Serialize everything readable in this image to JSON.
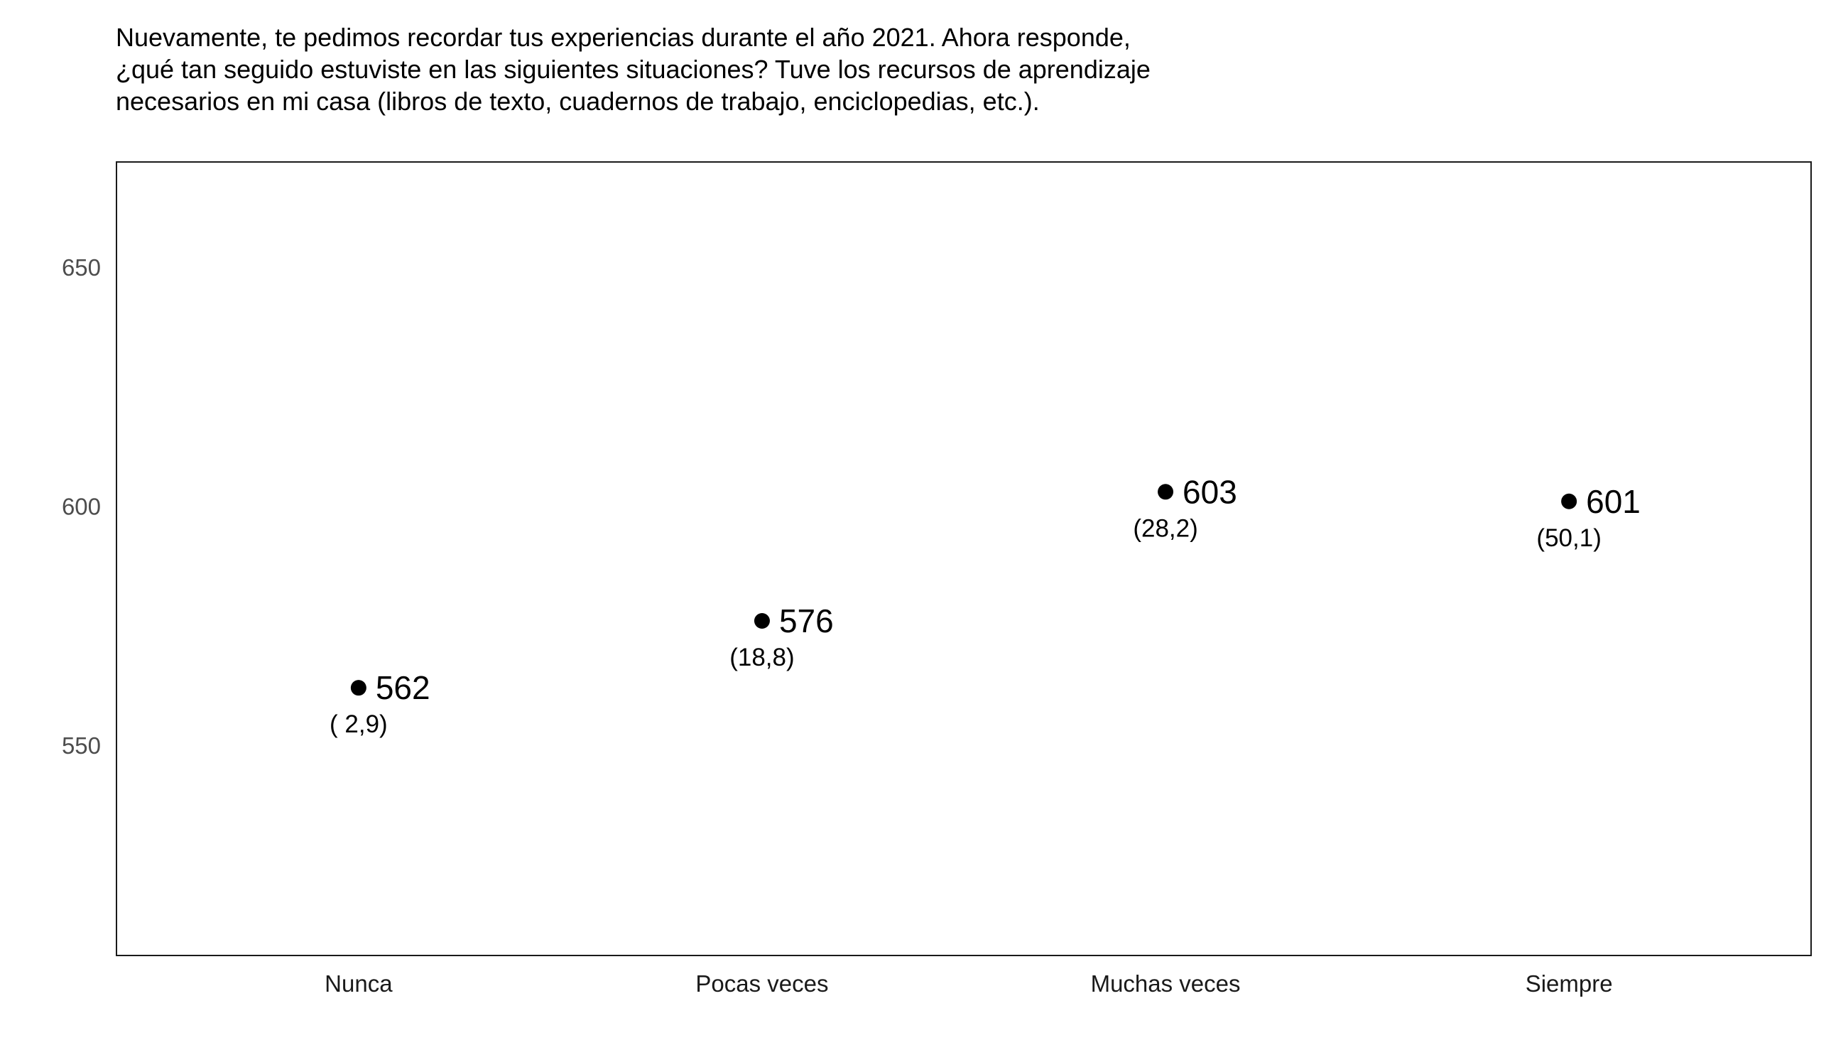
{
  "chart_data": {
    "type": "scatter",
    "title": "Nuevamente, te pedimos recordar tus experiencias durante el año 2021. Ahora responde, ¿qué tan seguido estuviste en las siguientes situaciones? Tuve los recursos de aprendizaje necesarios en mi casa (libros de texto, cuadernos de trabajo, enciclopedias, etc.).",
    "xlabel": "",
    "ylabel": "",
    "categories": [
      "Nunca",
      "Pocas veces",
      "Muchas veces",
      "Siempre"
    ],
    "values": [
      562,
      576,
      603,
      601
    ],
    "value_labels": [
      "562",
      "576",
      "603",
      "601"
    ],
    "percent_labels": [
      "( 2,9)",
      "(18,8)",
      "(28,2)",
      "(50,1)"
    ],
    "percentages": [
      2.9,
      18.8,
      28.2,
      50.1
    ],
    "ylim": [
      506,
      672
    ],
    "yticks": [
      550,
      600,
      650
    ],
    "ytick_labels": [
      "550",
      "600",
      "650"
    ],
    "grid": false,
    "legend": "none",
    "point_color": "#000000",
    "axis_color": "#1a1a1a"
  }
}
